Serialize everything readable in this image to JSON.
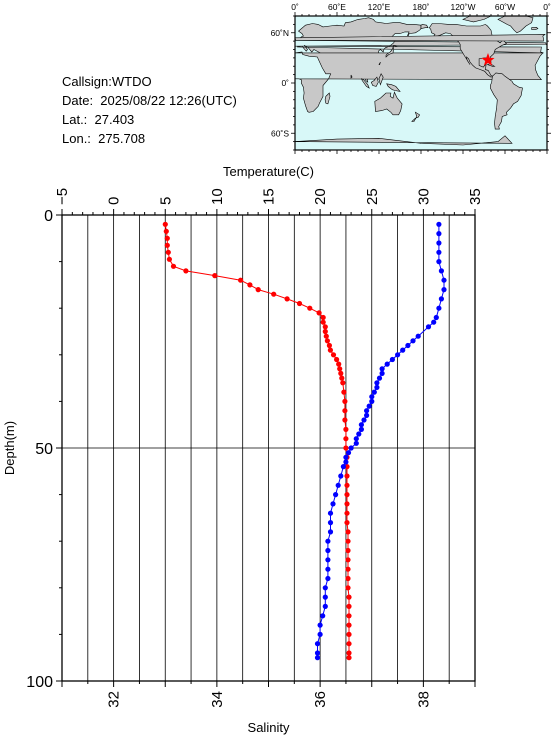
{
  "info": {
    "callsign": "Callsign:WTDO",
    "date": "Date:  2025/08/22 12:26(UTC)",
    "lat": "Lat.:  27.403",
    "lon": "Lon.:  275.708"
  },
  "map": {
    "top_ticks": [
      "0˚",
      "60˚E",
      "120˚E",
      "180˚",
      "120˚W",
      "60˚W",
      "0˚"
    ],
    "left_ticks": [
      "60˚N",
      "0˚",
      "60˚S"
    ],
    "marker_lon": 275.708,
    "marker_lat": 27.403,
    "ocean_color": "#d8f8f8",
    "land_color": "#c8c8c8",
    "marker_color": "#ff0000"
  },
  "chart_data": {
    "type": "scatter",
    "ylabel": "Depth(m)",
    "ylim": [
      0,
      100
    ],
    "y_inverted": true,
    "y_ticks": [
      "0",
      "50",
      "100"
    ],
    "top_axis": {
      "label": "Temperature(C)",
      "lim": [
        -5,
        35
      ],
      "ticks": [
        "−5",
        "0",
        "5",
        "10",
        "15",
        "20",
        "25",
        "30",
        "35"
      ]
    },
    "bottom_axis": {
      "label": "Salinity",
      "lim": [
        31,
        39
      ],
      "ticks": [
        "32",
        "34",
        "36",
        "38"
      ]
    },
    "series": [
      {
        "color": "#ff0000",
        "axis": "top",
        "points": [
          [
            5.0,
            2
          ],
          [
            5.1,
            3.5
          ],
          [
            5.2,
            5
          ],
          [
            5.2,
            6.5
          ],
          [
            5.3,
            8
          ],
          [
            5.4,
            9.5
          ],
          [
            5.8,
            11
          ],
          [
            7.0,
            12
          ],
          [
            9.8,
            13
          ],
          [
            12.3,
            14
          ],
          [
            13.2,
            15
          ],
          [
            14.0,
            16
          ],
          [
            15.5,
            17
          ],
          [
            16.8,
            18
          ],
          [
            18.0,
            19
          ],
          [
            19.0,
            20
          ],
          [
            19.9,
            21
          ],
          [
            20.3,
            22
          ],
          [
            20.3,
            23
          ],
          [
            20.5,
            24
          ],
          [
            20.5,
            25
          ],
          [
            20.6,
            26
          ],
          [
            20.7,
            27
          ],
          [
            20.9,
            28
          ],
          [
            21.0,
            29
          ],
          [
            21.3,
            30
          ],
          [
            21.6,
            31
          ],
          [
            21.8,
            32
          ],
          [
            21.9,
            33
          ],
          [
            22.0,
            34
          ],
          [
            22.1,
            35
          ],
          [
            22.2,
            36
          ],
          [
            22.3,
            38
          ],
          [
            22.4,
            40
          ],
          [
            22.4,
            42
          ],
          [
            22.4,
            44
          ],
          [
            22.5,
            46
          ],
          [
            22.5,
            48
          ],
          [
            22.5,
            50
          ],
          [
            22.6,
            52
          ],
          [
            22.6,
            54
          ],
          [
            22.6,
            56
          ],
          [
            22.6,
            58
          ],
          [
            22.6,
            60
          ],
          [
            22.6,
            62
          ],
          [
            22.6,
            64
          ],
          [
            22.6,
            66
          ],
          [
            22.7,
            68
          ],
          [
            22.7,
            70
          ],
          [
            22.7,
            72
          ],
          [
            22.7,
            74
          ],
          [
            22.7,
            76
          ],
          [
            22.7,
            78
          ],
          [
            22.7,
            80
          ],
          [
            22.8,
            82
          ],
          [
            22.8,
            84
          ],
          [
            22.8,
            86
          ],
          [
            22.8,
            88
          ],
          [
            22.8,
            90
          ],
          [
            22.8,
            92
          ],
          [
            22.8,
            94
          ],
          [
            22.8,
            95
          ]
        ]
      },
      {
        "color": "#0000ff",
        "axis": "bottom",
        "points": [
          [
            38.3,
            2
          ],
          [
            38.3,
            4
          ],
          [
            38.3,
            6
          ],
          [
            38.3,
            8
          ],
          [
            38.3,
            10
          ],
          [
            38.35,
            12
          ],
          [
            38.4,
            14
          ],
          [
            38.4,
            16
          ],
          [
            38.35,
            18
          ],
          [
            38.3,
            20
          ],
          [
            38.25,
            22
          ],
          [
            38.2,
            23
          ],
          [
            38.1,
            24
          ],
          [
            37.9,
            26
          ],
          [
            37.8,
            27
          ],
          [
            37.7,
            28
          ],
          [
            37.6,
            29
          ],
          [
            37.5,
            30
          ],
          [
            37.4,
            31
          ],
          [
            37.3,
            32
          ],
          [
            37.2,
            33
          ],
          [
            37.2,
            34
          ],
          [
            37.15,
            35
          ],
          [
            37.1,
            36
          ],
          [
            37.1,
            37
          ],
          [
            37.05,
            38
          ],
          [
            37.0,
            39
          ],
          [
            37.0,
            40
          ],
          [
            36.95,
            41
          ],
          [
            36.9,
            42
          ],
          [
            36.9,
            43
          ],
          [
            36.85,
            44
          ],
          [
            36.8,
            45
          ],
          [
            36.8,
            46
          ],
          [
            36.75,
            47
          ],
          [
            36.7,
            48
          ],
          [
            36.7,
            49
          ],
          [
            36.6,
            50
          ],
          [
            36.55,
            51
          ],
          [
            36.5,
            52
          ],
          [
            36.5,
            53
          ],
          [
            36.45,
            54
          ],
          [
            36.4,
            56
          ],
          [
            36.35,
            58
          ],
          [
            36.3,
            60
          ],
          [
            36.25,
            62
          ],
          [
            36.2,
            64
          ],
          [
            36.2,
            66
          ],
          [
            36.2,
            68
          ],
          [
            36.15,
            70
          ],
          [
            36.15,
            72
          ],
          [
            36.15,
            74
          ],
          [
            36.15,
            76
          ],
          [
            36.15,
            78
          ],
          [
            36.1,
            80
          ],
          [
            36.1,
            82
          ],
          [
            36.1,
            84
          ],
          [
            36.05,
            86
          ],
          [
            36.0,
            88
          ],
          [
            36.0,
            90
          ],
          [
            35.95,
            92
          ],
          [
            35.95,
            94
          ],
          [
            35.95,
            95
          ]
        ]
      }
    ]
  }
}
